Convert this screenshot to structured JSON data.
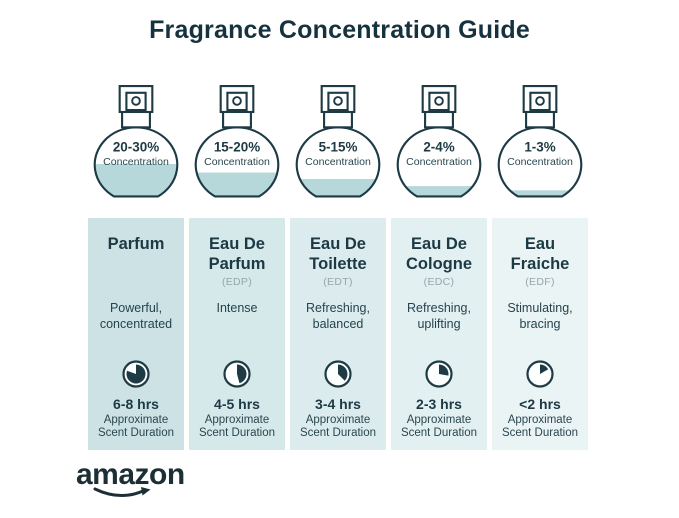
{
  "title": "Fragrance Concentration Guide",
  "brand": {
    "logo_text": "amazon"
  },
  "colors": {
    "dark": "#1d3a45",
    "title": "#15323e",
    "gray": "#95a6ac",
    "liquid": "#b6d8db",
    "column_backgrounds": [
      "#cde2e5",
      "#d5e8ea",
      "#dcecee",
      "#e3f0f1",
      "#ebf4f5"
    ]
  },
  "labels": {
    "concentration": "Concentration",
    "approx_line1": "Approximate",
    "approx_line2": "Scent Duration"
  },
  "columns": [
    {
      "concentration": "20-30%",
      "name": "Parfum",
      "abbreviation": "",
      "desc_line1": "Powerful,",
      "desc_line2": "concentrated",
      "duration": "6-8 hrs",
      "fill_percent": 47,
      "clock_degrees": 290,
      "bg": "#cde2e5"
    },
    {
      "concentration": "15-20%",
      "name": "Eau De Parfum",
      "abbreviation": "(EDP)",
      "desc_line1": "Intense",
      "desc_line2": "",
      "duration": "4-5 hrs",
      "fill_percent": 35,
      "clock_degrees": 165,
      "bg": "#d5e8ea"
    },
    {
      "concentration": "5-15%",
      "name": "Eau De Toilette",
      "abbreviation": "(EDT)",
      "desc_line1": "Refreshing,",
      "desc_line2": "balanced",
      "duration": "3-4 hrs",
      "fill_percent": 26,
      "clock_degrees": 135,
      "bg": "#dcecee"
    },
    {
      "concentration": "2-4%",
      "name": "Eau De Cologne",
      "abbreviation": "(EDC)",
      "desc_line1": "Refreshing,",
      "desc_line2": "uplifting",
      "duration": "2-3 hrs",
      "fill_percent": 16,
      "clock_degrees": 100,
      "bg": "#e3f0f1"
    },
    {
      "concentration": "1-3%",
      "name": "Eau Fraiche",
      "abbreviation": "(EDF)",
      "desc_line1": "Stimulating,",
      "desc_line2": "bracing",
      "duration": "<2 hrs",
      "fill_percent": 10,
      "clock_degrees": 60,
      "bg": "#ebf4f5"
    }
  ]
}
